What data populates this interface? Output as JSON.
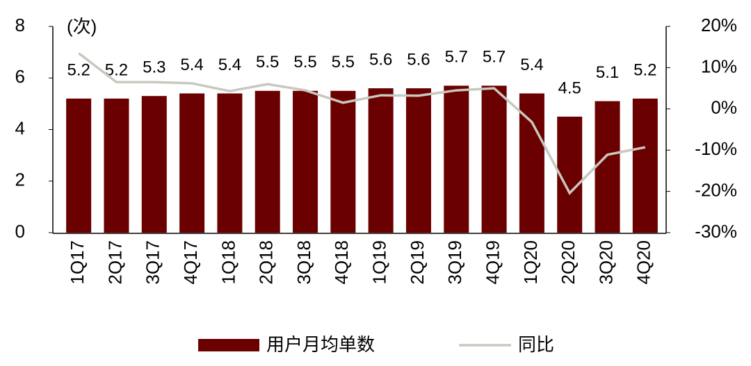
{
  "chart_data": {
    "type": "bar_line",
    "unit_label": "(次)",
    "categories": [
      "1Q17",
      "2Q17",
      "3Q17",
      "4Q17",
      "1Q18",
      "2Q18",
      "3Q18",
      "4Q18",
      "1Q19",
      "2Q19",
      "3Q19",
      "4Q19",
      "1Q20",
      "2Q20",
      "3Q20",
      "4Q20"
    ],
    "series": [
      {
        "name": "用户月均单数",
        "type": "bar",
        "color": "#6b0000",
        "values": [
          5.2,
          5.2,
          5.3,
          5.4,
          5.4,
          5.5,
          5.5,
          5.5,
          5.6,
          5.6,
          5.7,
          5.7,
          5.4,
          4.5,
          5.1,
          5.2
        ]
      },
      {
        "name": "同比",
        "type": "line",
        "axis": "y2",
        "color": "#c8c8c0",
        "values": [
          13.5,
          6.5,
          6.5,
          6.2,
          4.3,
          6.0,
          4.5,
          1.5,
          3.3,
          3.2,
          4.5,
          5.0,
          -3.2,
          -20.4,
          -11.1,
          -9.3
        ]
      }
    ],
    "ylim": [
      0,
      8
    ],
    "yticks": [
      0,
      2,
      4,
      6,
      8
    ],
    "y2lim": [
      -30,
      20
    ],
    "y2ticks": [
      {
        "value": -30,
        "label": "-30%"
      },
      {
        "value": -20,
        "label": "-20%"
      },
      {
        "value": -10,
        "label": "-10%"
      },
      {
        "value": 0,
        "label": "0%"
      },
      {
        "value": 10,
        "label": "10%"
      },
      {
        "value": 20,
        "label": "20%"
      }
    ],
    "legend": "bottom"
  }
}
